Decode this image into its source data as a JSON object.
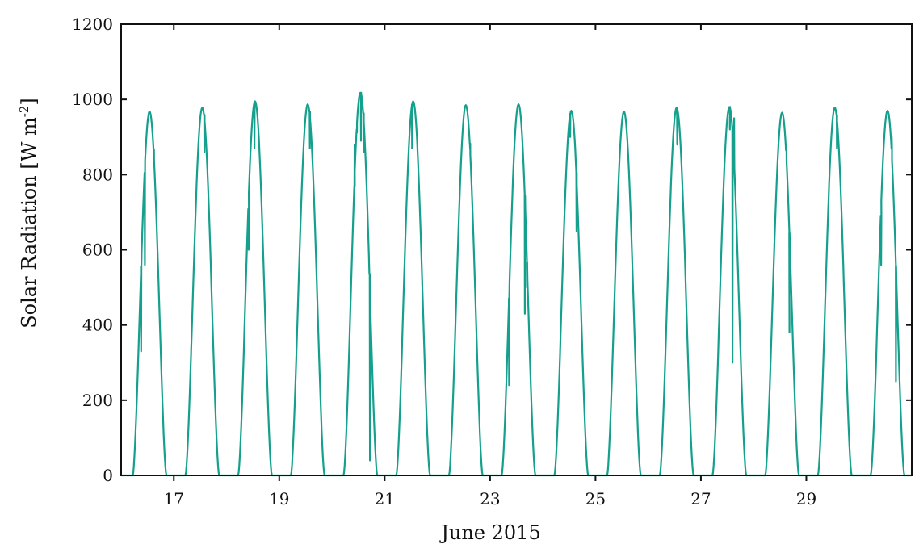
{
  "chart_data": {
    "type": "line",
    "title": "",
    "xlabel": "June 2015",
    "ylabel": "Solar Radiation [W m",
    "ylabel_sup": "-2",
    "ylabel_close": "]",
    "xlim": [
      16.0,
      31.0
    ],
    "ylim": [
      0,
      1200
    ],
    "x_ticks": [
      17,
      19,
      21,
      23,
      25,
      27,
      29
    ],
    "x_tick_labels": [
      "17",
      "19",
      "21",
      "23",
      "25",
      "27",
      "29"
    ],
    "y_ticks": [
      0,
      200,
      400,
      600,
      800,
      1000,
      1200
    ],
    "y_tick_labels": [
      "0",
      "200",
      "400",
      "600",
      "800",
      "1000",
      "1200"
    ],
    "grid": false,
    "line_color": "#14a08c",
    "series": [
      {
        "days": [
          {
            "day": 16,
            "peak": 968,
            "dips": [
              [
                16.38,
                330
              ],
              [
                16.45,
                560
              ],
              [
                16.62,
                850
              ]
            ]
          },
          {
            "day": 17,
            "peak": 978,
            "dips": [
              [
                17.58,
                860
              ]
            ]
          },
          {
            "day": 18,
            "peak": 995,
            "dips": [
              [
                18.53,
                870
              ],
              [
                18.42,
                600
              ]
            ]
          },
          {
            "day": 19,
            "peak": 987,
            "dips": [
              [
                19.58,
                870
              ]
            ]
          },
          {
            "day": 20,
            "peak": 1018,
            "dips": [
              [
                20.43,
                880
              ],
              [
                20.47,
                920
              ],
              [
                20.55,
                890
              ],
              [
                20.6,
                860
              ],
              [
                20.72,
                40
              ]
            ]
          },
          {
            "day": 21,
            "peak": 995,
            "dips": [
              [
                21.52,
                870
              ]
            ]
          },
          {
            "day": 22,
            "peak": 985,
            "dips": [
              [
                22.62,
                870
              ]
            ]
          },
          {
            "day": 23,
            "peak": 987,
            "dips": [
              [
                23.36,
                240
              ],
              [
                23.66,
                430
              ],
              [
                23.7,
                500
              ]
            ]
          },
          {
            "day": 24,
            "peak": 970,
            "dips": [
              [
                24.52,
                900
              ],
              [
                24.64,
                650
              ]
            ]
          },
          {
            "day": 25,
            "peak": 968,
            "dips": []
          },
          {
            "day": 26,
            "peak": 978,
            "dips": [
              [
                26.55,
                880
              ]
            ]
          },
          {
            "day": 27,
            "peak": 980,
            "dips": [
              [
                27.55,
                920
              ],
              [
                27.6,
                300
              ],
              [
                27.63,
                950
              ]
            ]
          },
          {
            "day": 28,
            "peak": 965,
            "dips": [
              [
                28.62,
                870
              ],
              [
                28.68,
                380
              ]
            ]
          },
          {
            "day": 29,
            "peak": 978,
            "dips": [
              [
                29.58,
                870
              ]
            ]
          },
          {
            "day": 30,
            "peak": 970,
            "dips": [
              [
                30.42,
                560
              ],
              [
                30.62,
                900
              ],
              [
                30.7,
                250
              ]
            ]
          }
        ],
        "sunrise_frac": 0.22,
        "sunset_frac": 0.86
      }
    ],
    "bottom_left_label": "0"
  }
}
